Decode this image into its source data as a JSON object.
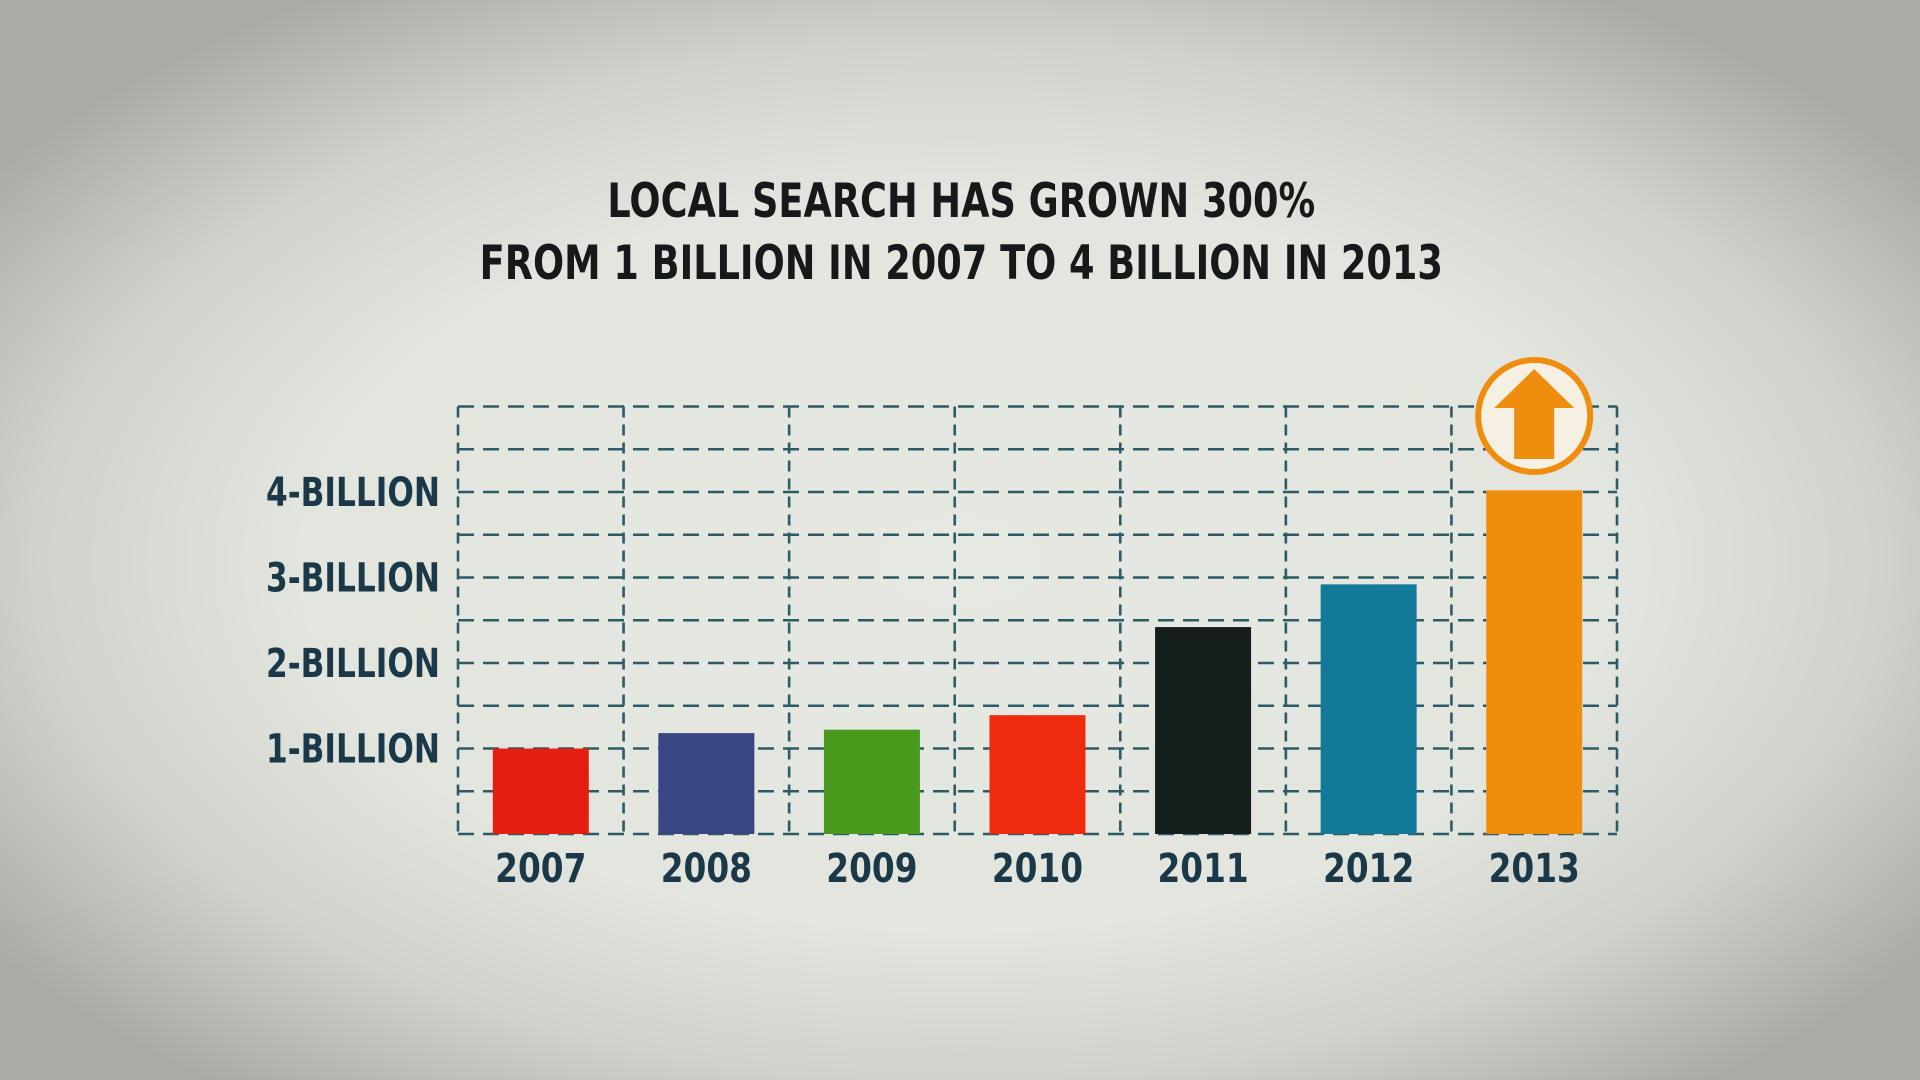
{
  "chart_data": {
    "type": "bar",
    "title": [
      "LOCAL SEARCH HAS GROWN 300%",
      "FROM 1 BILLION IN 2007 TO 4 BILLION IN 2013"
    ],
    "categories": [
      "2007",
      "2008",
      "2009",
      "2010",
      "2011",
      "2012",
      "2013"
    ],
    "values": [
      1.0,
      1.18,
      1.22,
      1.39,
      2.42,
      2.92,
      4.02
    ],
    "bar_colors": [
      "#e41f12",
      "#3a4584",
      "#479a1c",
      "#ee2b0e",
      "#141e1c",
      "#127999",
      "#ef8e0e"
    ],
    "y_ticks": [
      {
        "value": 1,
        "label": "1-BILLION"
      },
      {
        "value": 2,
        "label": "2-BILLION"
      },
      {
        "value": 3,
        "label": "3-BILLION"
      },
      {
        "value": 4,
        "label": "4-BILLION"
      }
    ],
    "ylim": [
      0,
      5
    ],
    "grid": true,
    "grid_style": "dashed",
    "grid_color": "#2b5b66",
    "label_color": "#1a3848",
    "highlight": {
      "category": "2013",
      "icon": "up-arrow-icon",
      "color": "#ef8e0e"
    }
  }
}
